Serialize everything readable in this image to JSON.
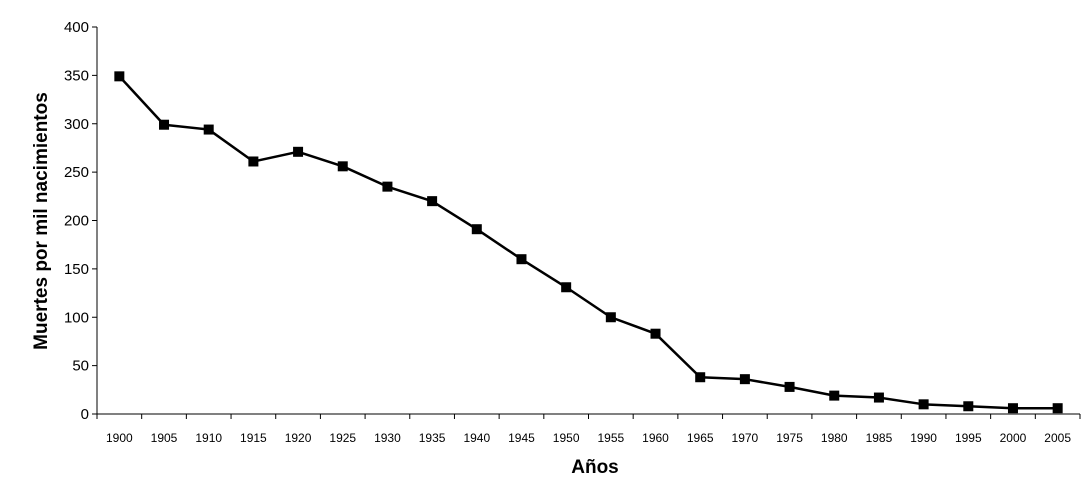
{
  "chart_data": {
    "type": "line",
    "title": "",
    "xlabel": "Años",
    "ylabel": "Muertes por mil nacimientos",
    "ylim": [
      0,
      400
    ],
    "yticks": [
      0,
      50,
      100,
      150,
      200,
      250,
      300,
      350,
      400
    ],
    "grid": false,
    "legend": "none",
    "x": [
      "1900",
      "1905",
      "1910",
      "1915",
      "1920",
      "1925",
      "1930",
      "1935",
      "1940",
      "1945",
      "1950",
      "1955",
      "1960",
      "1965",
      "1970",
      "1975",
      "1980",
      "1985",
      "1990",
      "1995",
      "2000",
      "2005"
    ],
    "series": [
      {
        "values": [
          349,
          299,
          294,
          261,
          271,
          256,
          235,
          220,
          191,
          160,
          131,
          100,
          83,
          38,
          36,
          28,
          19,
          17,
          10,
          8,
          6,
          6
        ],
        "color": "#000000",
        "marker": "square"
      }
    ]
  }
}
